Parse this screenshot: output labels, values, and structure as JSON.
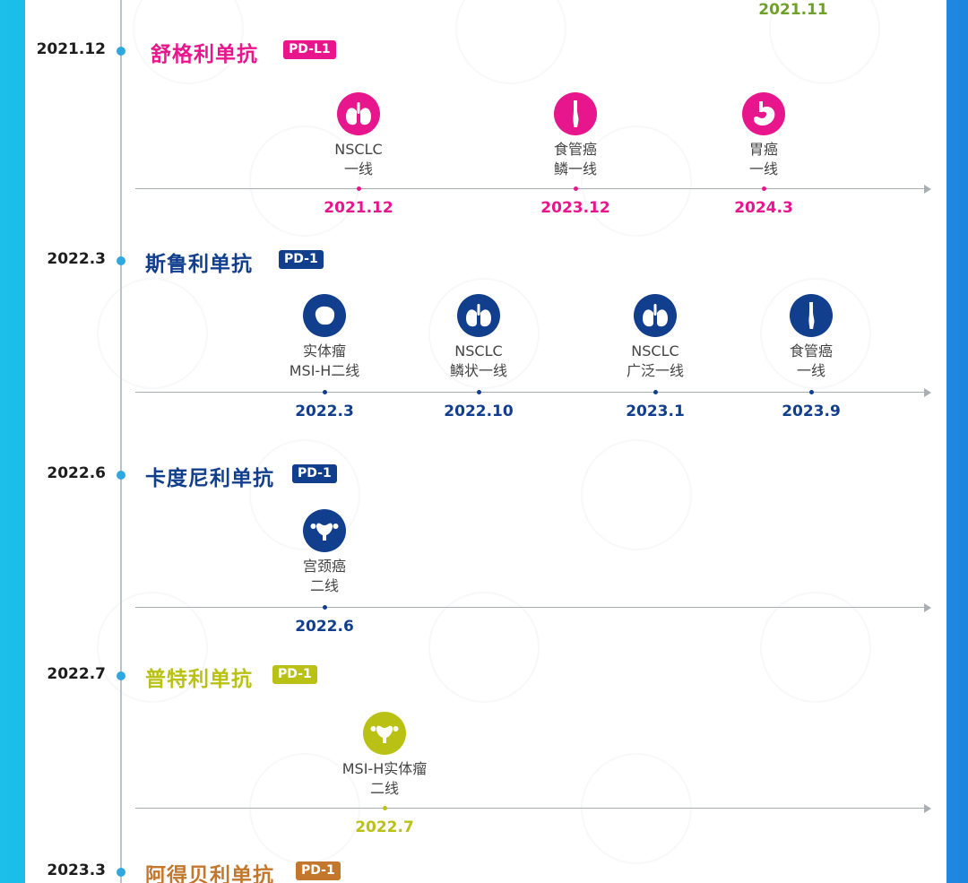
{
  "top_event_date": "2021.11",
  "sections": [
    {
      "side_date": "2021.12",
      "name": "舒格利单抗",
      "badge": "PD-L1",
      "color": "#e8168d",
      "events": [
        {
          "icon": "lung-icon",
          "lines": [
            "NSCLC",
            "一线"
          ],
          "date": "2021.12"
        },
        {
          "icon": "esophagus-icon",
          "lines": [
            "食管癌",
            "鳞一线"
          ],
          "date": "2023.12"
        },
        {
          "icon": "stomach-icon",
          "lines": [
            "胃癌",
            "一线"
          ],
          "date": "2024.3"
        }
      ]
    },
    {
      "side_date": "2022.3",
      "name": "斯鲁利单抗",
      "badge": "PD-1",
      "color": "#123f8d",
      "events": [
        {
          "icon": "tumor-icon",
          "lines": [
            "实体瘤",
            "MSI-H二线"
          ],
          "date": "2022.3"
        },
        {
          "icon": "lung-icon",
          "lines": [
            "NSCLC",
            "鳞状一线"
          ],
          "date": "2022.10"
        },
        {
          "icon": "lung-icon",
          "lines": [
            "NSCLC",
            "广泛一线"
          ],
          "date": "2023.1"
        },
        {
          "icon": "esophagus-icon",
          "lines": [
            "食管癌",
            "一线"
          ],
          "date": "2023.9"
        }
      ]
    },
    {
      "side_date": "2022.6",
      "name": "卡度尼利单抗",
      "badge": "PD-1",
      "color": "#123f8d",
      "events": [
        {
          "icon": "uterus-icon",
          "lines": [
            "宫颈癌",
            "二线"
          ],
          "date": "2022.6"
        }
      ]
    },
    {
      "side_date": "2022.7",
      "name": "普特利单抗",
      "badge": "PD-1",
      "color": "#b9c214",
      "events": [
        {
          "icon": "uterus-icon",
          "lines": [
            "MSI-H实体瘤",
            "二线"
          ],
          "date": "2022.7"
        }
      ]
    },
    {
      "side_date": "2023.3",
      "name": "阿得贝利单抗",
      "badge": "PD-1",
      "color": "#c2772d",
      "events": []
    }
  ]
}
